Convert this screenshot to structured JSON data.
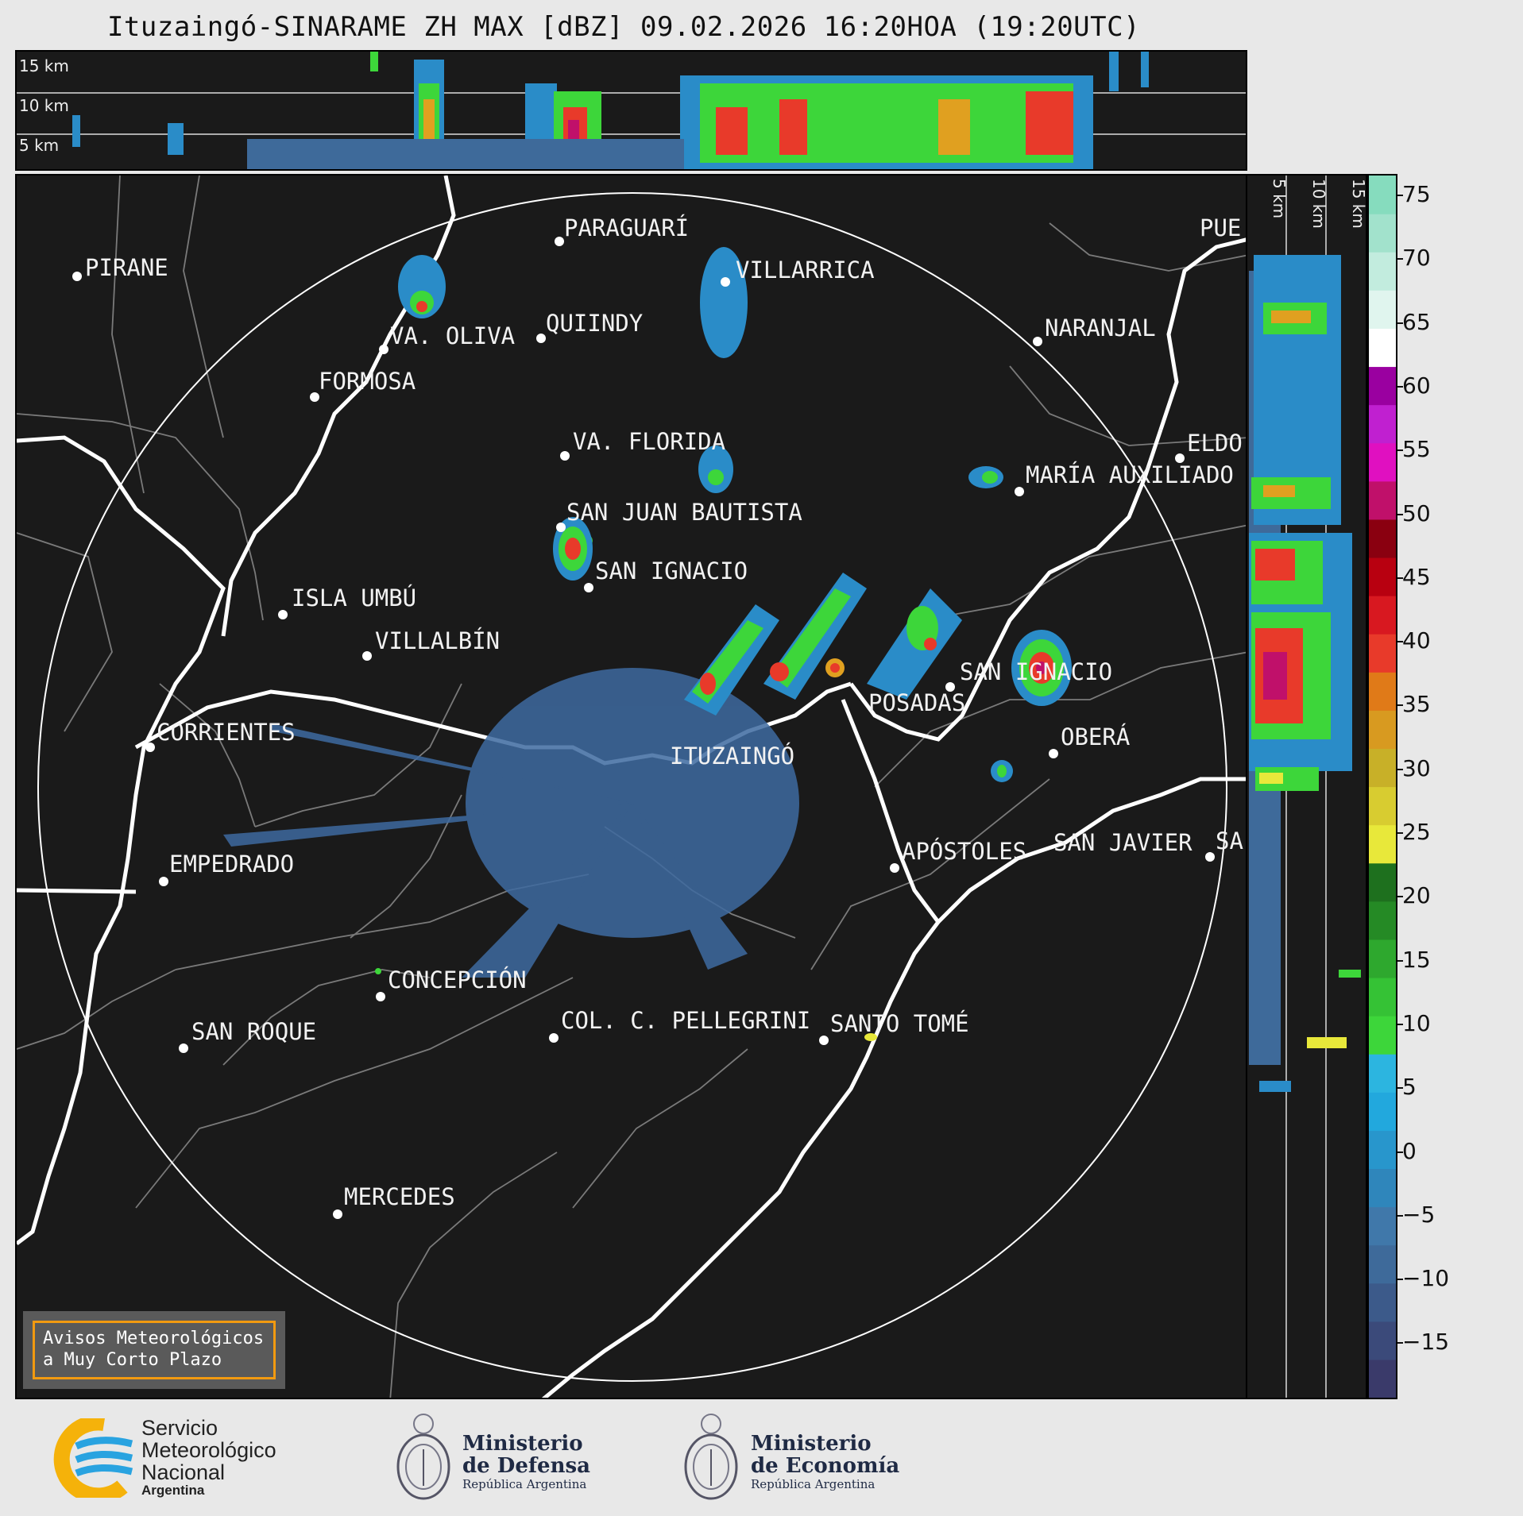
{
  "title": "Ituzaingó-SINARAME ZH MAX [dBZ] 09.02.2026 16:20HOA (19:20UTC)",
  "height_levels": [
    "15 km",
    "10 km",
    "5 km"
  ],
  "side_levels": [
    "5 km",
    "10 km",
    "15 km"
  ],
  "colorbar": {
    "unit": "dBZ",
    "ticks": [
      "75",
      "70",
      "65",
      "60",
      "55",
      "50",
      "45",
      "40",
      "35",
      "30",
      "25",
      "20",
      "15",
      "10",
      "5",
      "0",
      "−5",
      "−10",
      "−15"
    ],
    "colors": [
      "#3a3a6a",
      "#3b4a7a",
      "#3c5a8a",
      "#3e6a9a",
      "#4078aa",
      "#2f86bb",
      "#2896cc",
      "#22a8dd",
      "#2cb5e0",
      "#3dd63a",
      "#35c235",
      "#2ea82e",
      "#258a25",
      "#1e701e",
      "#e8e83a",
      "#d8cc30",
      "#c8b028",
      "#d89a20",
      "#e07a18",
      "#e83a2a",
      "#d81820",
      "#b80010",
      "#8a0010",
      "#c0106a",
      "#e010c0",
      "#c020d0",
      "#9a00a0",
      "#ffffff",
      "#e0f5ee",
      "#c2ecde",
      "#a2e2cc",
      "#86dcbe"
    ]
  },
  "cities": [
    {
      "name": "PIRANE"
    },
    {
      "name": "PARAGUARÍ"
    },
    {
      "name": "VILLARRICA"
    },
    {
      "name": "VA. OLIVA"
    },
    {
      "name": "QUIINDY"
    },
    {
      "name": "FORMOSA"
    },
    {
      "name": "NARANJAL"
    },
    {
      "name": "PUE"
    },
    {
      "name": "VA. FLORIDA"
    },
    {
      "name": "ELDO"
    },
    {
      "name": "MARÍA AUXILIADO"
    },
    {
      "name": "SAN JUAN BAUTISTA"
    },
    {
      "name": "SAN IGNACIO"
    },
    {
      "name": "ISLA UMBÚ"
    },
    {
      "name": "VILLALBÍN"
    },
    {
      "name": "SAN IGNACIO"
    },
    {
      "name": "POSADAS"
    },
    {
      "name": "CORRIENTES"
    },
    {
      "name": "ITUZAINGÓ"
    },
    {
      "name": "OBERÁ"
    },
    {
      "name": "APÓSTOLES"
    },
    {
      "name": "SAN JAVIER"
    },
    {
      "name": "SA"
    },
    {
      "name": "EMPEDRADO"
    },
    {
      "name": "CONCEPCIÓN"
    },
    {
      "name": "COL. C. PELLEGRINI"
    },
    {
      "name": "SANTO TOMÉ"
    },
    {
      "name": "SAN ROQUE"
    },
    {
      "name": "MERCEDES"
    }
  ],
  "avisos": {
    "line1": "Avisos Meteorológicos",
    "line2": "a Muy Corto Plazo"
  },
  "logos": {
    "smn": {
      "line1": "Servicio",
      "line2": "Meteorológico",
      "line3": "Nacional",
      "line4": "Argentina"
    },
    "defensa": {
      "line1": "Ministerio",
      "line2": "de Defensa",
      "line3": "República Argentina"
    },
    "economia": {
      "line1": "Ministerio",
      "line2": "de Economía",
      "line3": "República Argentina"
    }
  }
}
